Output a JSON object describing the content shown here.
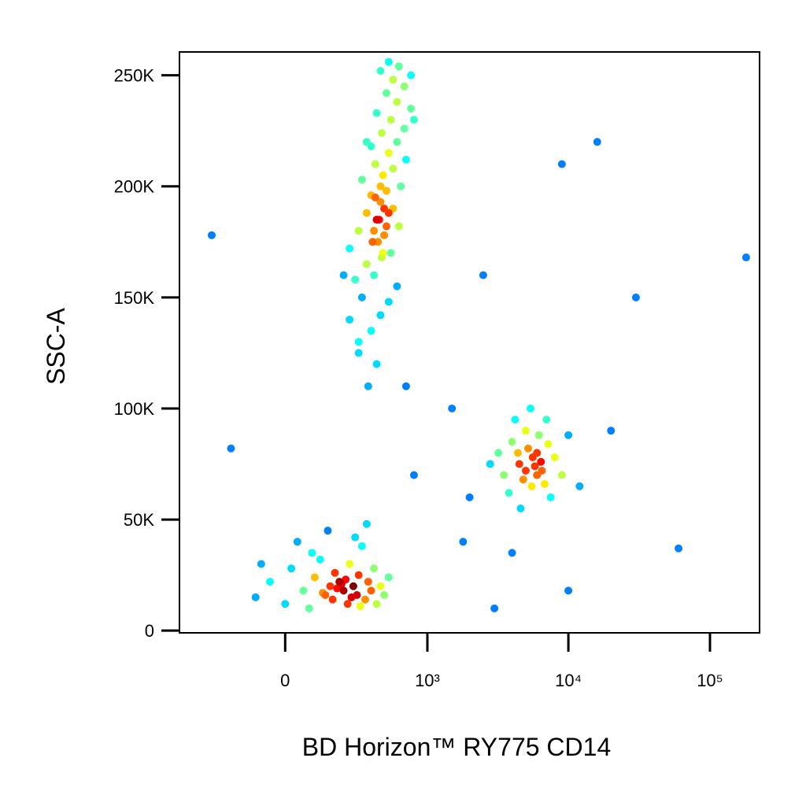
{
  "chart_data": {
    "type": "scatter",
    "x_label": "BD Horizon™ RY775  CD14",
    "y_label": "SSC-A",
    "xscale": "biexponential",
    "colormap": "jet",
    "xlim": [
      -540,
      224000
    ],
    "xticks": [
      0,
      {
        "value": 1000,
        "label": "10³"
      },
      {
        "value": 10000,
        "label": "10⁴"
      },
      {
        "value": 100000,
        "label": "10⁵"
      }
    ],
    "ylim": [
      -1000,
      260500
    ],
    "yticks": [
      0,
      {
        "value": 50000,
        "label": "50K"
      },
      {
        "value": 100000,
        "label": "100K"
      },
      {
        "value": 150000,
        "label": "150K"
      },
      {
        "value": 200000,
        "label": "200K"
      },
      {
        "value": 250000,
        "label": "250K"
      }
    ],
    "x": [
      300,
      380,
      250,
      450,
      320,
      520,
      280,
      400,
      600,
      350,
      460,
      250,
      540,
      390,
      300,
      480,
      620,
      420,
      350,
      560,
      450,
      380,
      500,
      640,
      320,
      470,
      560,
      410,
      700,
      520,
      380,
      600,
      460,
      680,
      540,
      420,
      760,
      600,
      500,
      680,
      560,
      760,
      450,
      620,
      520,
      440,
      480,
      430,
      500,
      410,
      470,
      520,
      450,
      400,
      350,
      220,
      800,
      300,
      420,
      360,
      -100,
      -50,
      0,
      20,
      60,
      80,
      100,
      120,
      140,
      160,
      170,
      180,
      200,
      220,
      240,
      250,
      270,
      290,
      300,
      320,
      340,
      360,
      380,
      400,
      420,
      450,
      480,
      520,
      -80,
      40,
      150,
      280,
      190,
      210,
      230,
      130,
      260,
      310,
      90,
      350,
      3500,
      4000,
      4500,
      5000,
      5500,
      6000,
      6500,
      7000,
      7500,
      8000,
      3800,
      4200,
      4800,
      5200,
      5800,
      6200,
      6800,
      7200,
      9000,
      3200,
      5400,
      4600,
      10000,
      2800,
      12000,
      5600,
      6400,
      5000,
      6000,
      4400,
      1500,
      2000,
      800,
      20000,
      16000,
      60000,
      180000,
      3000,
      10000,
      2500,
      30000,
      700,
      -200,
      -300,
      1800,
      9000,
      4000
    ],
    "values": [
      130000,
      135000,
      140000,
      142000,
      150000,
      148000,
      158000,
      160000,
      155000,
      165000,
      168000,
      172000,
      170000,
      175000,
      180000,
      178000,
      182000,
      185000,
      188000,
      190000,
      193000,
      196000,
      198000,
      200000,
      203000,
      205000,
      208000,
      210000,
      212000,
      215000,
      218000,
      220000,
      224000,
      226000,
      230000,
      233000,
      235000,
      238000,
      242000,
      245000,
      248000,
      250000,
      252000,
      254000,
      256000,
      185000,
      190000,
      175000,
      182000,
      195000,
      170000,
      188000,
      200000,
      180000,
      220000,
      160000,
      230000,
      125000,
      120000,
      110000,
      15000,
      22000,
      12000,
      28000,
      18000,
      10000,
      24000,
      32000,
      16000,
      20000,
      14000,
      26000,
      22000,
      18000,
      12000,
      30000,
      20000,
      16000,
      25000,
      38000,
      14000,
      22000,
      18000,
      28000,
      12000,
      20000,
      16000,
      24000,
      30000,
      40000,
      45000,
      42000,
      19000,
      21000,
      23000,
      17000,
      15000,
      11000,
      35000,
      48000,
      70000,
      85000,
      75000,
      90000,
      65000,
      80000,
      72000,
      95000,
      60000,
      78000,
      62000,
      95000,
      68000,
      82000,
      74000,
      88000,
      66000,
      84000,
      70000,
      80000,
      100000,
      55000,
      88000,
      75000,
      65000,
      78000,
      76000,
      72000,
      70000,
      80000,
      100000,
      60000,
      70000,
      90000,
      220000,
      37000,
      168000,
      10000,
      18000,
      160000,
      150000,
      110000,
      82000,
      178000,
      40000,
      210000,
      35000
    ]
  }
}
